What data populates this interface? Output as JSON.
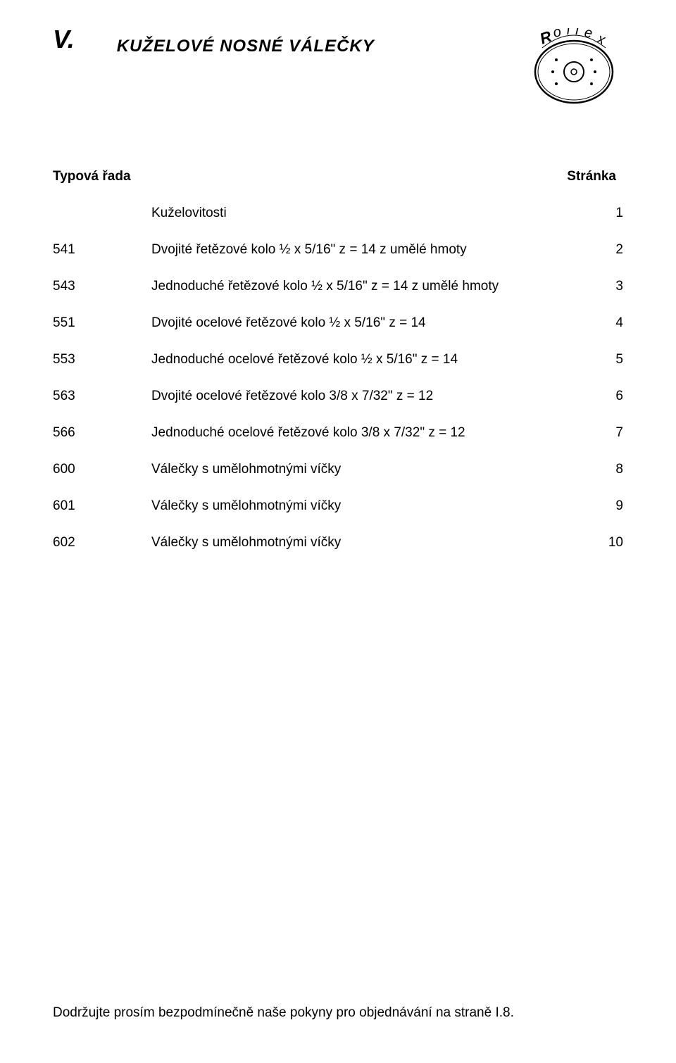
{
  "section_letter": "V.",
  "page_title": "KUŽELOVÉ  NOSNÉ  VÁLEČKY",
  "logo_text": "Rollex",
  "table_headers": {
    "left": "Typová řada",
    "right": "Stránka"
  },
  "toc": [
    {
      "code": "",
      "desc": "Kuželovitosti",
      "page": "1"
    },
    {
      "code": "541",
      "desc": "Dvojité řetězové kolo ½ x 5/16\"  z = 14  z umělé hmoty",
      "page": "2"
    },
    {
      "code": "543",
      "desc": "Jednoduché řetězové kolo ½ x 5/16\"  z = 14  z umělé hmoty",
      "page": "3"
    },
    {
      "code": "551",
      "desc": "Dvojité ocelové řetězové kolo ½ x 5/16\"  z = 14",
      "page": "4"
    },
    {
      "code": "553",
      "desc": "Jednoduché ocelové řetězové kolo ½ x 5/16\"  z = 14",
      "page": "5"
    },
    {
      "code": "563",
      "desc": "Dvojité ocelové řetězové kolo 3/8 x 7/32\"  z = 12",
      "page": "6"
    },
    {
      "code": "566",
      "desc": "Jednoduché ocelové řetězové kolo 3/8 x 7/32\"  z = 12",
      "page": "7"
    },
    {
      "code": "600",
      "desc": "Válečky s umělohmotnými víčky",
      "page": "8"
    },
    {
      "code": "601",
      "desc": "Válečky s umělohmotnými víčky",
      "page": "9"
    },
    {
      "code": "602",
      "desc": "Válečky s umělohmotnými víčky",
      "page": "10"
    }
  ],
  "footer_text": "Dodržujte prosím bezpodmínečně naše pokyny pro objednávání na straně I.8.",
  "colors": {
    "background": "#ffffff",
    "text": "#000000"
  },
  "typography": {
    "base_font_size": 19,
    "title_font_size": 24,
    "section_letter_font_size": 36
  }
}
